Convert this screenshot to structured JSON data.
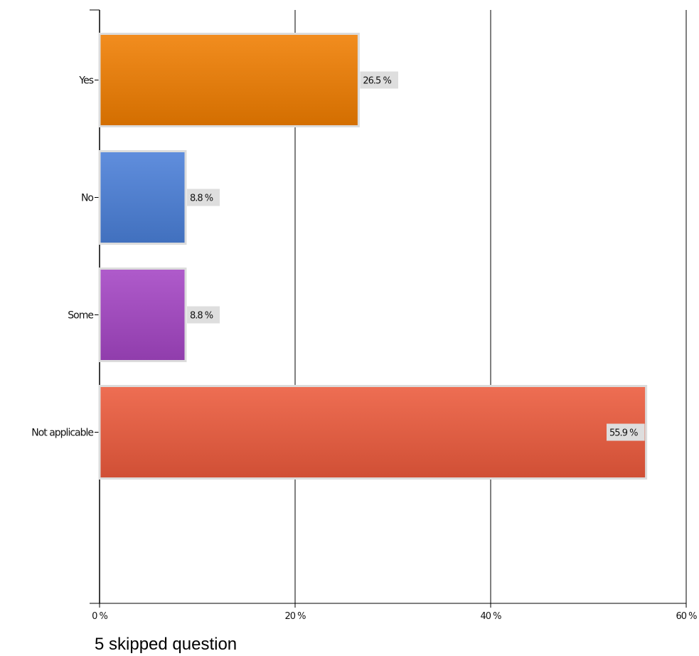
{
  "chart_data": {
    "type": "bar",
    "orientation": "horizontal",
    "categories": [
      "Yes",
      "No",
      "Some",
      "Not applicable"
    ],
    "values": [
      26.5,
      8.8,
      8.8,
      55.9
    ],
    "data_labels": [
      "26.5 %",
      "8.8 %",
      "8.8 %",
      "55.9 %"
    ],
    "colors": [
      "#f07d00",
      "#4a7fd8",
      "#a445c4",
      "#ec5a3c"
    ],
    "xlim": [
      0,
      60
    ],
    "x_ticks": [
      0,
      20,
      40,
      60
    ],
    "x_tick_labels": [
      "0 %",
      "20 %",
      "40 %",
      "60 %"
    ],
    "grid": true,
    "title": "",
    "xlabel": "",
    "ylabel": ""
  },
  "footer": {
    "text": "5 skipped question"
  }
}
